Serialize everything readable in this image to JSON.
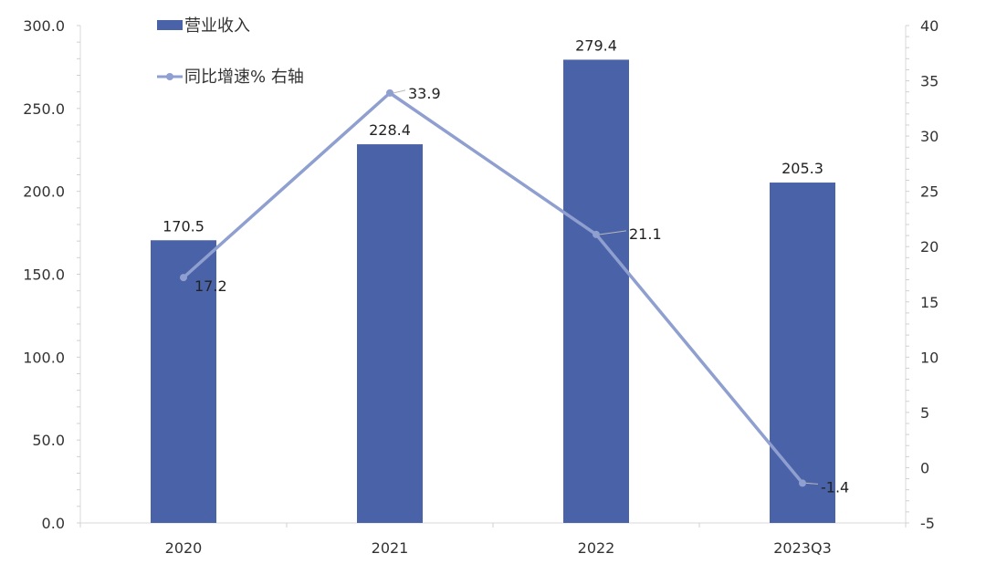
{
  "chart_data": {
    "type": "bar",
    "categories": [
      "2020",
      "2021",
      "2022",
      "2023Q3"
    ],
    "series": [
      {
        "name": "营业收入",
        "type": "bar",
        "axis": "left",
        "color": "#4a62a8",
        "values": [
          170.5,
          228.4,
          279.4,
          205.3
        ],
        "labels": [
          "170.5",
          "228.4",
          "279.4",
          "205.3"
        ]
      },
      {
        "name": "同比增速% 右轴",
        "type": "line",
        "axis": "right",
        "color": "#8e9fd0",
        "values": [
          17.2,
          33.9,
          21.1,
          -1.4
        ],
        "labels": [
          "17.2",
          "33.9",
          "21.1",
          "-1.4"
        ]
      }
    ],
    "left_axis": {
      "ylim": [
        0,
        300
      ],
      "ticks": [
        0,
        50,
        100,
        150,
        200,
        250,
        300
      ],
      "tick_labels": [
        "0.0",
        "50.0",
        "100.0",
        "150.0",
        "200.0",
        "250.0",
        "300.0"
      ]
    },
    "right_axis": {
      "ylim": [
        -5,
        40
      ],
      "ticks": [
        -5,
        0,
        5,
        10,
        15,
        20,
        25,
        30,
        35,
        40
      ],
      "tick_labels": [
        "-5",
        "0",
        "5",
        "10",
        "15",
        "20",
        "25",
        "30",
        "35",
        "40"
      ]
    },
    "legend_position": "top-left",
    "grid": false
  }
}
